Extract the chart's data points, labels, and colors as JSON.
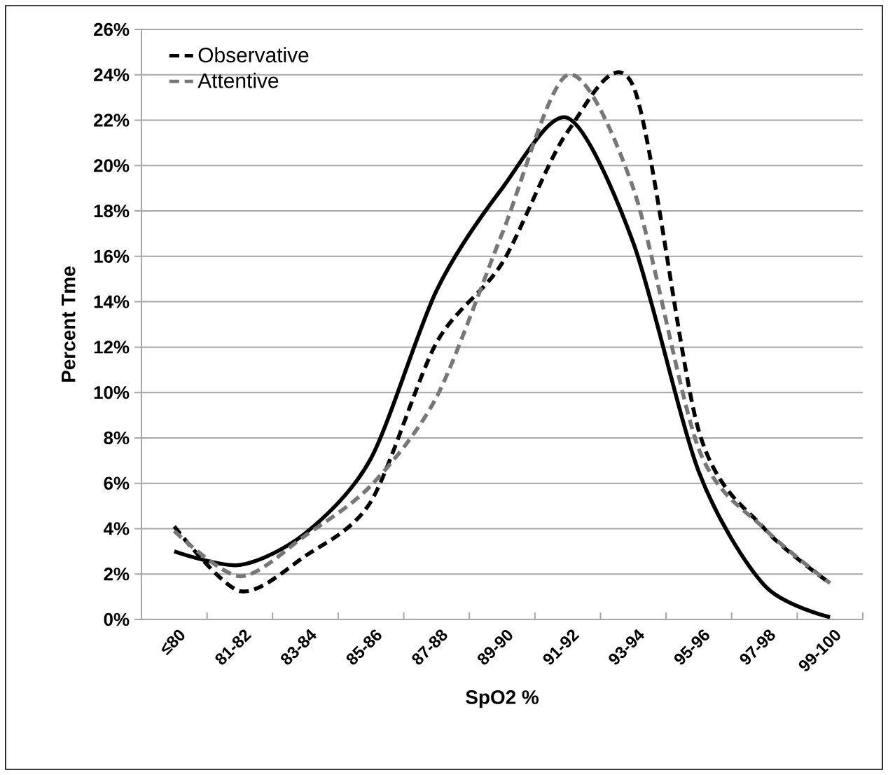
{
  "chart_data": {
    "type": "line",
    "xlabel": "SpO2 %",
    "ylabel": "Percent Tme",
    "categories": [
      "≤80",
      "81-82",
      "83-84",
      "85-86",
      "87-88",
      "89-90",
      "91-92",
      "93-94",
      "95-96",
      "97-98",
      "99-100"
    ],
    "series": [
      {
        "name": "Observative",
        "color": "#000000",
        "line_style": "dashed",
        "values": [
          4.1,
          1.25,
          2.8,
          5.2,
          12.2,
          15.7,
          21.5,
          23.5,
          8.3,
          4.0,
          1.6
        ]
      },
      {
        "color": "#000000",
        "line_style": "solid",
        "values": [
          3.0,
          2.4,
          3.8,
          7.1,
          14.5,
          19.0,
          22.1,
          16.6,
          6.5,
          1.5,
          0.1
        ]
      },
      {
        "name": "Attentive",
        "color": "#777777",
        "line_style": "dashed",
        "values": [
          3.9,
          1.9,
          3.7,
          5.9,
          9.8,
          17.0,
          24.0,
          19.0,
          7.5,
          4.0,
          1.6
        ]
      }
    ],
    "ylim": [
      0,
      26
    ],
    "yticks": [
      {
        "value": 0,
        "label": "0%"
      },
      {
        "value": 2,
        "label": "2%"
      },
      {
        "value": 4,
        "label": "4%"
      },
      {
        "value": 6,
        "label": "6%"
      },
      {
        "value": 8,
        "label": "8%"
      },
      {
        "value": 10,
        "label": "10%"
      },
      {
        "value": 12,
        "label": "12%"
      },
      {
        "value": 14,
        "label": "14%"
      },
      {
        "value": 16,
        "label": "16%"
      },
      {
        "value": 18,
        "label": "18%"
      },
      {
        "value": 20,
        "label": "20%"
      },
      {
        "value": 22,
        "label": "22%"
      },
      {
        "value": 24,
        "label": "24%"
      },
      {
        "value": 26,
        "label": "26%"
      }
    ],
    "grid": "y",
    "legend": "top left",
    "marker": "none"
  }
}
